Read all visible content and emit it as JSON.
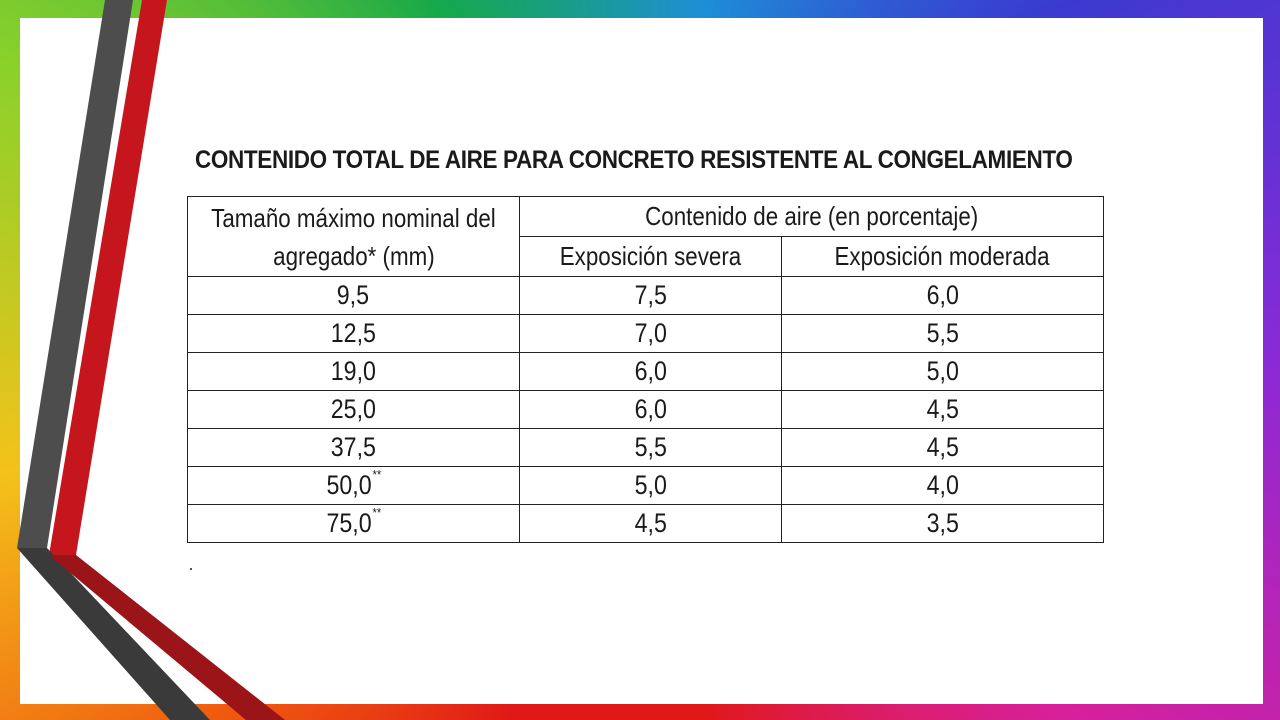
{
  "colors": {
    "accent_red": "#c4161c",
    "accent_gray": "#555555",
    "panel": "#ffffff",
    "text": "#1a1a1a"
  },
  "title": "CONTENIDO TOTAL DE AIRE PARA CONCRETO RESISTENTE AL CONGELAMIENTO",
  "table": {
    "col1_header_line1": "Tamaño máximo nominal del",
    "col1_header_line2": "agregado* (mm)",
    "group_header": "Contenido de aire (en porcentaje)",
    "col2_header": "Exposición severa",
    "col3_header": "Exposición moderada",
    "rows": [
      {
        "size": "9,5",
        "mark": "",
        "severe": "7,5",
        "moderate": "6,0"
      },
      {
        "size": "12,5",
        "mark": "",
        "severe": "7,0",
        "moderate": "5,5"
      },
      {
        "size": "19,0",
        "mark": "",
        "severe": "6,0",
        "moderate": "5,0"
      },
      {
        "size": "25,0",
        "mark": "",
        "severe": "6,0",
        "moderate": "4,5"
      },
      {
        "size": "37,5",
        "mark": "",
        "severe": "5,5",
        "moderate": "4,5"
      },
      {
        "size": "50,0",
        "mark": "**",
        "severe": "5,0",
        "moderate": "4,0"
      },
      {
        "size": "75,0",
        "mark": "**",
        "severe": "4,5",
        "moderate": "3,5"
      }
    ]
  }
}
